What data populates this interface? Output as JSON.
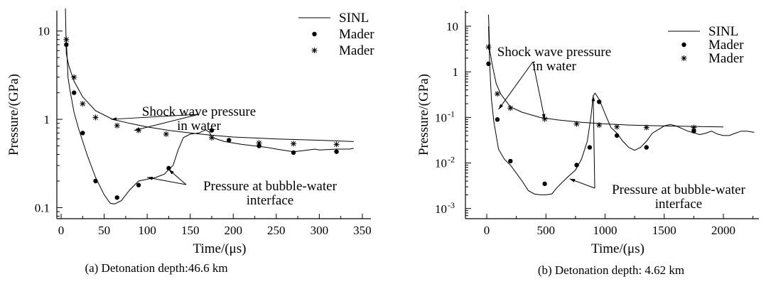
{
  "chart_data": [
    {
      "type": "line",
      "caption": "(a)  Detonation depth:46.6 km",
      "xlabel": "Time/(μs)",
      "ylabel": "Pressure/(GPa)",
      "xlim": [
        -5,
        360
      ],
      "ylim": [
        0.075,
        17
      ],
      "yscale": "log",
      "x_ticks": [
        0,
        50,
        100,
        150,
        200,
        250,
        300,
        350
      ],
      "y_ticks": [
        {
          "value": 0.1,
          "label": "0.1"
        },
        {
          "value": 1,
          "label": "1"
        },
        {
          "value": 10,
          "label": "10"
        }
      ],
      "legend": {
        "position": "top-right",
        "entries": [
          {
            "name": "SINL",
            "marker": "line"
          },
          {
            "name": "Mader",
            "marker": "dot"
          },
          {
            "name": "Mader",
            "marker": "star"
          }
        ]
      },
      "series": [
        {
          "name": "SINL",
          "kind": "line",
          "label": "Shock wave pressure in water",
          "points": [
            [
              5,
              18
            ],
            [
              6,
              5.5
            ],
            [
              9,
              4
            ],
            [
              15,
              2.7
            ],
            [
              25,
              1.8
            ],
            [
              40,
              1.25
            ],
            [
              60,
              1.0
            ],
            [
              80,
              0.9
            ],
            [
              100,
              0.82
            ],
            [
              125,
              0.75
            ],
            [
              150,
              0.7
            ],
            [
              175,
              0.66
            ],
            [
              200,
              0.63
            ],
            [
              250,
              0.6
            ],
            [
              300,
              0.58
            ],
            [
              340,
              0.56
            ]
          ]
        },
        {
          "name": "SINL",
          "kind": "line",
          "label": "Pressure at bubble-water interface",
          "points": [
            [
              6,
              8
            ],
            [
              8,
              3
            ],
            [
              10,
              2.2
            ],
            [
              15,
              1.2
            ],
            [
              20,
              0.8
            ],
            [
              30,
              0.4
            ],
            [
              40,
              0.22
            ],
            [
              50,
              0.14
            ],
            [
              57,
              0.112
            ],
            [
              62,
              0.11
            ],
            [
              70,
              0.12
            ],
            [
              80,
              0.16
            ],
            [
              90,
              0.2
            ],
            [
              100,
              0.21
            ],
            [
              110,
              0.22
            ],
            [
              120,
              0.24
            ],
            [
              125,
              0.27
            ],
            [
              130,
              0.3
            ],
            [
              136,
              0.45
            ],
            [
              142,
              0.62
            ],
            [
              150,
              0.68
            ],
            [
              160,
              0.7
            ],
            [
              168,
              0.76
            ],
            [
              172,
              0.72
            ],
            [
              176,
              0.62
            ],
            [
              190,
              0.56
            ],
            [
              210,
              0.52
            ],
            [
              225,
              0.5
            ],
            [
              240,
              0.48
            ],
            [
              250,
              0.46
            ],
            [
              270,
              0.43
            ],
            [
              280,
              0.44
            ],
            [
              295,
              0.46
            ],
            [
              300,
              0.45
            ],
            [
              320,
              0.46
            ],
            [
              335,
              0.46
            ],
            [
              340,
              0.47
            ]
          ]
        },
        {
          "name": "Mader",
          "kind": "scatter",
          "marker": "dot",
          "points": [
            [
              6,
              7
            ],
            [
              15,
              2
            ],
            [
              25,
              0.7
            ],
            [
              40,
              0.2
            ],
            [
              65,
              0.13
            ],
            [
              90,
              0.18
            ],
            [
              125,
              0.28
            ],
            [
              175,
              0.75
            ],
            [
              195,
              0.58
            ],
            [
              230,
              0.5
            ],
            [
              270,
              0.42
            ],
            [
              320,
              0.43
            ]
          ]
        },
        {
          "name": "Mader",
          "kind": "scatter",
          "marker": "star",
          "points": [
            [
              6,
              8
            ],
            [
              15,
              3
            ],
            [
              25,
              1.5
            ],
            [
              40,
              1.05
            ],
            [
              65,
              0.85
            ],
            [
              90,
              0.75
            ],
            [
              122,
              0.68
            ],
            [
              175,
              0.62
            ],
            [
              230,
              0.54
            ],
            [
              270,
              0.53
            ],
            [
              320,
              0.52
            ]
          ]
        }
      ],
      "annotations": [
        {
          "text": [
            "Shock wave pressure",
            "in water"
          ],
          "arrow_to": [
            [
              58,
              1.0
            ],
            [
              85,
              0.75
            ]
          ]
        },
        {
          "text": [
            "Pressure at bubble-water",
            "interface"
          ],
          "arrow_to": [
            [
              100,
              0.22
            ],
            [
              125,
              0.27
            ]
          ]
        }
      ]
    },
    {
      "type": "line",
      "caption": "(b)  Detonation depth: 4.62 km",
      "xlabel": "Time/(μs)",
      "ylabel": "Pressure/(GPa)",
      "xlim": [
        -180,
        2300
      ],
      "ylim": [
        0.0006,
        22
      ],
      "yscale": "log",
      "x_ticks": [
        0,
        500,
        1000,
        1500,
        2000
      ],
      "y_ticks": [
        {
          "value": 0.001,
          "label": "10",
          "sup": "-3"
        },
        {
          "value": 0.01,
          "label": "10",
          "sup": "-2"
        },
        {
          "value": 0.1,
          "label": "10",
          "sup": "-1"
        },
        {
          "value": 1,
          "label": "1"
        },
        {
          "value": 10,
          "label": "10"
        }
      ],
      "legend": {
        "position": "top-right",
        "entries": [
          {
            "name": "SINL",
            "marker": "line"
          },
          {
            "name": "Mader",
            "marker": "dot"
          },
          {
            "name": "Mader",
            "marker": "star"
          }
        ]
      },
      "series": [
        {
          "name": "SINL",
          "kind": "line",
          "label": "Shock wave pressure in water",
          "points": [
            [
              15,
              18
            ],
            [
              25,
              3
            ],
            [
              50,
              1.3
            ],
            [
              80,
              0.55
            ],
            [
              120,
              0.32
            ],
            [
              200,
              0.17
            ],
            [
              300,
              0.13
            ],
            [
              450,
              0.1
            ],
            [
              600,
              0.088
            ],
            [
              800,
              0.078
            ],
            [
              1000,
              0.072
            ],
            [
              1200,
              0.068
            ],
            [
              1500,
              0.065
            ],
            [
              1800,
              0.063
            ],
            [
              2000,
              0.062
            ]
          ]
        },
        {
          "name": "SINL",
          "kind": "line",
          "label": "Pressure at bubble-water interface",
          "points": [
            [
              15,
              10
            ],
            [
              25,
              1.5
            ],
            [
              40,
              0.25
            ],
            [
              60,
              0.08
            ],
            [
              80,
              0.04
            ],
            [
              100,
              0.02
            ],
            [
              150,
              0.012
            ],
            [
              200,
              0.009
            ],
            [
              250,
              0.006
            ],
            [
              300,
              0.004
            ],
            [
              350,
              0.0025
            ],
            [
              400,
              0.0021
            ],
            [
              450,
              0.002
            ],
            [
              500,
              0.002
            ],
            [
              550,
              0.0021
            ],
            [
              600,
              0.003
            ],
            [
              680,
              0.0048
            ],
            [
              750,
              0.007
            ],
            [
              800,
              0.012
            ],
            [
              850,
              0.03
            ],
            [
              880,
              0.1
            ],
            [
              900,
              0.3
            ],
            [
              915,
              0.34
            ],
            [
              950,
              0.25
            ],
            [
              1000,
              0.12
            ],
            [
              1050,
              0.06
            ],
            [
              1100,
              0.045
            ],
            [
              1150,
              0.03
            ],
            [
              1200,
              0.022
            ],
            [
              1250,
              0.019
            ],
            [
              1300,
              0.022
            ],
            [
              1350,
              0.03
            ],
            [
              1400,
              0.045
            ],
            [
              1500,
              0.065
            ],
            [
              1550,
              0.07
            ],
            [
              1600,
              0.065
            ],
            [
              1700,
              0.05
            ],
            [
              1800,
              0.042
            ],
            [
              1850,
              0.045
            ],
            [
              1900,
              0.05
            ],
            [
              1950,
              0.043
            ],
            [
              2000,
              0.04
            ],
            [
              2050,
              0.04
            ],
            [
              2100,
              0.045
            ],
            [
              2150,
              0.05
            ],
            [
              2200,
              0.05
            ],
            [
              2260,
              0.047
            ]
          ]
        },
        {
          "name": "Mader",
          "kind": "scatter",
          "marker": "dot",
          "points": [
            [
              15,
              1.5
            ],
            [
              90,
              0.09
            ],
            [
              200,
              0.011
            ],
            [
              490,
              0.0035
            ],
            [
              760,
              0.009
            ],
            [
              870,
              0.022
            ],
            [
              950,
              0.22
            ],
            [
              1100,
              0.04
            ],
            [
              1350,
              0.022
            ],
            [
              1750,
              0.05
            ]
          ]
        },
        {
          "name": "Mader",
          "kind": "scatter",
          "marker": "star",
          "points": [
            [
              15,
              3.5
            ],
            [
              90,
              0.33
            ],
            [
              200,
              0.16
            ],
            [
              490,
              0.092
            ],
            [
              760,
              0.072
            ],
            [
              950,
              0.068
            ],
            [
              1100,
              0.062
            ],
            [
              1350,
              0.06
            ],
            [
              1750,
              0.06
            ]
          ]
        }
      ],
      "annotations": [
        {
          "text": [
            "Shock wave pressure",
            "in water"
          ],
          "arrow_to": [
            [
              100,
              0.15
            ],
            [
              490,
              0.09
            ]
          ]
        },
        {
          "text": [
            "Pressure at bubble-water",
            "interface"
          ],
          "arrow_to": [
            [
              700,
              0.0045
            ],
            [
              900,
              0.3
            ]
          ]
        }
      ]
    }
  ]
}
